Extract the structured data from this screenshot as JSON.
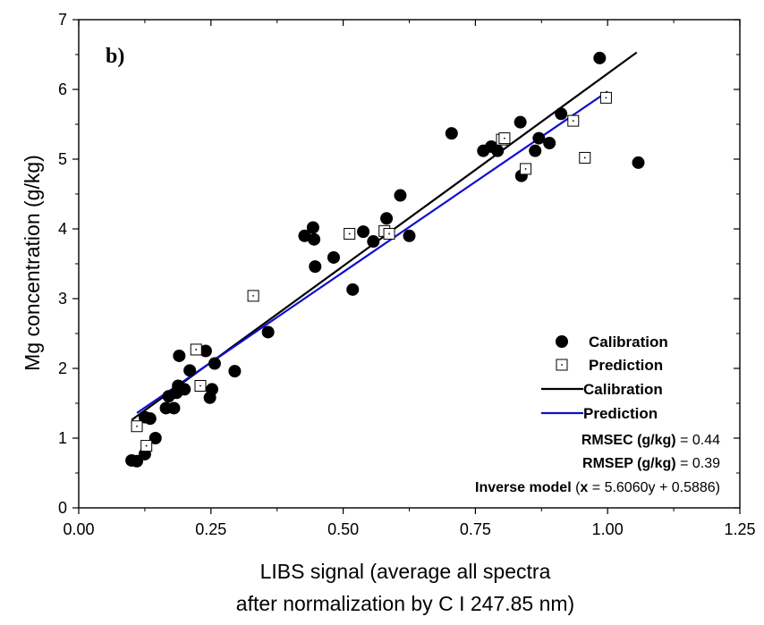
{
  "chart_data": {
    "type": "scatter",
    "panel_label": "b)",
    "xlabel_line1": "LIBS signal (average all spectra",
    "xlabel_line2": "after normalization by C I 247.85 nm)",
    "ylabel": "Mg concentration (g/kg)",
    "xlim": [
      0.0,
      1.25
    ],
    "ylim": [
      0,
      7
    ],
    "x_ticks": [
      "0.00",
      "0.25",
      "0.50",
      "0.75",
      "1.00",
      "1.25"
    ],
    "y_ticks": [
      "0",
      "1",
      "2",
      "3",
      "4",
      "5",
      "6",
      "7"
    ],
    "grid": false,
    "legend_position": "bottom-right",
    "legend": {
      "calibration_points": "Calibration",
      "prediction_points": "Prediction",
      "calibration_line": "Calibration",
      "prediction_line": "Prediction"
    },
    "stats": {
      "rmsec_label": "RMSEC (g/kg)",
      "rmsec_value": " = 0.44",
      "rmsep_label": "RMSEP (g/kg)",
      "rmsep_value": " = 0.39",
      "inverse_label": "Inverse model",
      "inverse_open": " (",
      "inverse_x": "x",
      "inverse_rest": " = 5.6060y + 0.5886)"
    },
    "colors": {
      "calibration_line": "#000000",
      "prediction_line": "#1010d0",
      "calibration_points": "#000000",
      "prediction_points": "#000000"
    },
    "series": [
      {
        "name": "Calibration",
        "kind": "points",
        "marker": "filled-circle",
        "points": [
          [
            0.1,
            0.68
          ],
          [
            0.11,
            0.67
          ],
          [
            0.125,
            0.77
          ],
          [
            0.125,
            1.3
          ],
          [
            0.135,
            1.28
          ],
          [
            0.145,
            1.0
          ],
          [
            0.165,
            1.43
          ],
          [
            0.17,
            1.6
          ],
          [
            0.18,
            1.43
          ],
          [
            0.185,
            1.65
          ],
          [
            0.188,
            1.75
          ],
          [
            0.19,
            2.18
          ],
          [
            0.2,
            1.7
          ],
          [
            0.21,
            1.97
          ],
          [
            0.24,
            2.25
          ],
          [
            0.248,
            1.58
          ],
          [
            0.252,
            1.7
          ],
          [
            0.257,
            2.07
          ],
          [
            0.295,
            1.96
          ],
          [
            0.358,
            2.52
          ],
          [
            0.427,
            3.9
          ],
          [
            0.443,
            4.02
          ],
          [
            0.445,
            3.85
          ],
          [
            0.447,
            3.46
          ],
          [
            0.482,
            3.59
          ],
          [
            0.518,
            3.13
          ],
          [
            0.538,
            3.96
          ],
          [
            0.557,
            3.82
          ],
          [
            0.582,
            4.15
          ],
          [
            0.608,
            4.48
          ],
          [
            0.625,
            3.9
          ],
          [
            0.705,
            5.37
          ],
          [
            0.765,
            5.12
          ],
          [
            0.78,
            5.18
          ],
          [
            0.792,
            5.12
          ],
          [
            0.835,
            5.53
          ],
          [
            0.837,
            4.76
          ],
          [
            0.863,
            5.12
          ],
          [
            0.87,
            5.3
          ],
          [
            0.89,
            5.23
          ],
          [
            0.912,
            5.65
          ],
          [
            0.985,
            6.45
          ],
          [
            1.058,
            4.95
          ]
        ]
      },
      {
        "name": "Prediction",
        "kind": "points",
        "marker": "open-square",
        "points": [
          [
            0.11,
            1.17
          ],
          [
            0.128,
            0.89
          ],
          [
            0.222,
            2.27
          ],
          [
            0.23,
            1.75
          ],
          [
            0.33,
            3.04
          ],
          [
            0.512,
            3.93
          ],
          [
            0.578,
            3.97
          ],
          [
            0.587,
            3.93
          ],
          [
            0.8,
            5.28
          ],
          [
            0.805,
            5.3
          ],
          [
            0.845,
            4.86
          ],
          [
            0.935,
            5.55
          ],
          [
            0.957,
            5.02
          ],
          [
            0.997,
            5.88
          ]
        ]
      },
      {
        "name": "Calibration",
        "kind": "line",
        "points": [
          [
            0.1,
            1.26
          ],
          [
            1.055,
            6.53
          ]
        ]
      },
      {
        "name": "Prediction",
        "kind": "line",
        "points": [
          [
            0.11,
            1.36
          ],
          [
            1.0,
            5.97
          ]
        ]
      }
    ]
  }
}
